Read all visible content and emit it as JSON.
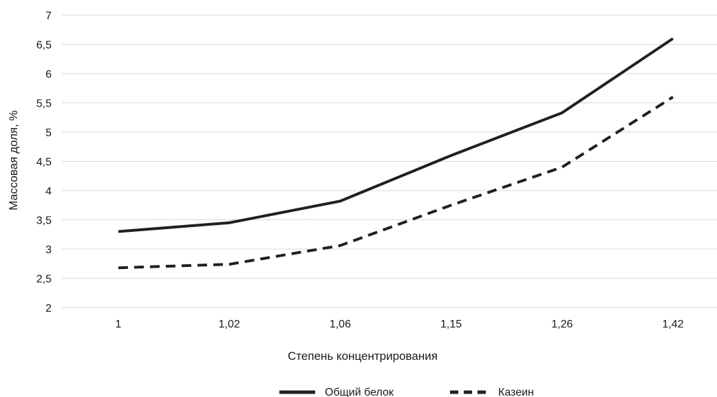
{
  "chart_data": {
    "type": "line",
    "categories": [
      "1",
      "1,02",
      "1,06",
      "1,15",
      "1,26",
      "1,42"
    ],
    "series": [
      {
        "name": "Общий белок",
        "values": [
          3.3,
          3.45,
          3.82,
          4.6,
          5.33,
          6.6
        ],
        "color": "#231f20",
        "dash": "solid"
      },
      {
        "name": "Казеин",
        "values": [
          2.68,
          2.74,
          3.06,
          3.75,
          4.4,
          5.6
        ],
        "color": "#231f20",
        "dash": "dashed"
      }
    ],
    "xlabel": "Степень концентрирования",
    "ylabel": "Массовая доля, %",
    "ylim": [
      2,
      7
    ],
    "yticks": [
      "2",
      "2,5",
      "3",
      "3,5",
      "4",
      "4,5",
      "5",
      "5,5",
      "6",
      "6,5",
      "7"
    ],
    "grid": true,
    "legend_position": "bottom-center"
  }
}
